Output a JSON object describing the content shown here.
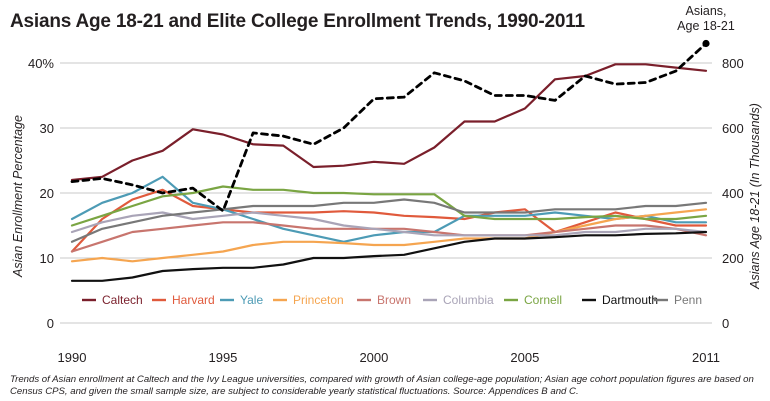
{
  "chart_data": {
    "type": "line",
    "title": "Asians Age 18-21 and Elite College Enrollment Trends, 1990-2011",
    "ylabel_left": "Asian Enrollment Percentage",
    "ylabel_right": "Asians Age 18-21 (In Thousands)",
    "ylim_left": [
      0,
      40
    ],
    "ylim_right": [
      0,
      800
    ],
    "yticks_left": [
      "0",
      "10",
      "20",
      "30",
      "40%"
    ],
    "yticks_right": [
      "0",
      "200",
      "400",
      "600",
      "800"
    ],
    "xticks": [
      "1990",
      "1995",
      "2000",
      "2005",
      "2011"
    ],
    "x": [
      1990,
      1991,
      1992,
      1993,
      1994,
      1995,
      1996,
      1997,
      1998,
      1999,
      2000,
      2001,
      2002,
      2003,
      2004,
      2005,
      2006,
      2007,
      2008,
      2009,
      2010,
      2011
    ],
    "grid": true,
    "legend_position": "bottom",
    "series": [
      {
        "name": "Caltech",
        "color": "#7a1f2b",
        "values": [
          22.0,
          22.5,
          25.0,
          26.5,
          29.8,
          29.0,
          27.5,
          27.3,
          24.0,
          24.2,
          24.8,
          24.5,
          27.0,
          31.0,
          31.0,
          33.0,
          37.5,
          38.0,
          39.8,
          39.8,
          39.3,
          38.8
        ]
      },
      {
        "name": "Harvard",
        "color": "#e05a3c",
        "values": [
          11.0,
          16.0,
          19.0,
          20.5,
          18.0,
          17.5,
          17.0,
          17.0,
          17.0,
          17.2,
          17.0,
          16.5,
          16.3,
          16.0,
          17.0,
          17.5,
          14.0,
          15.5,
          17.0,
          16.0,
          15.0,
          15.0
        ]
      },
      {
        "name": "Yale",
        "color": "#4d9bb5",
        "values": [
          16.0,
          18.5,
          20.0,
          22.5,
          18.5,
          17.5,
          16.0,
          14.5,
          13.5,
          12.5,
          13.5,
          14.0,
          14.0,
          16.5,
          16.5,
          16.5,
          17.0,
          16.5,
          16.0,
          16.5,
          15.5,
          15.5
        ]
      },
      {
        "name": "Princeton",
        "color": "#f5a550",
        "values": [
          9.5,
          10.0,
          9.5,
          10.0,
          10.5,
          11.0,
          12.0,
          12.5,
          12.5,
          12.3,
          12.0,
          12.0,
          12.5,
          13.0,
          13.0,
          13.0,
          14.0,
          15.0,
          16.0,
          16.5,
          17.0,
          17.5
        ]
      },
      {
        "name": "Brown",
        "color": "#c8756e",
        "values": [
          11.0,
          12.5,
          14.0,
          14.5,
          15.0,
          15.5,
          15.5,
          15.0,
          14.5,
          14.5,
          14.5,
          14.5,
          14.0,
          13.5,
          13.5,
          13.5,
          14.0,
          14.5,
          15.0,
          15.0,
          14.5,
          13.5
        ]
      },
      {
        "name": "Columbia",
        "color": "#a9a4b7",
        "values": [
          14.0,
          15.5,
          16.5,
          17.0,
          16.0,
          16.5,
          17.0,
          16.5,
          16.0,
          15.0,
          14.5,
          14.0,
          13.5,
          13.5,
          13.5,
          13.5,
          13.5,
          14.0,
          14.0,
          14.5,
          14.5,
          14.0
        ]
      },
      {
        "name": "Cornell",
        "color": "#7aa543",
        "values": [
          15.0,
          16.5,
          18.0,
          19.5,
          20.0,
          21.0,
          20.5,
          20.5,
          20.0,
          20.0,
          19.8,
          19.8,
          19.8,
          16.5,
          16.0,
          16.0,
          16.0,
          16.3,
          16.5,
          16.0,
          16.0,
          16.5
        ]
      },
      {
        "name": "Dartmouth",
        "color": "#111111",
        "values": [
          6.5,
          6.5,
          7.0,
          8.0,
          8.3,
          8.5,
          8.5,
          9.0,
          10.0,
          10.0,
          10.3,
          10.5,
          11.5,
          12.5,
          13.0,
          13.0,
          13.2,
          13.5,
          13.5,
          13.7,
          13.8,
          14.0
        ]
      },
      {
        "name": "Penn",
        "color": "#787878",
        "values": [
          12.5,
          14.5,
          15.5,
          16.5,
          17.0,
          17.5,
          18.0,
          18.0,
          18.0,
          18.5,
          18.5,
          19.0,
          18.5,
          17.0,
          17.0,
          17.0,
          17.5,
          17.5,
          17.5,
          18.0,
          18.0,
          18.5
        ]
      },
      {
        "name": "Asians, Age 18-21",
        "axis": "right",
        "color": "#000000",
        "dashed": true,
        "values": [
          435,
          445,
          425,
          400,
          415,
          345,
          585,
          575,
          550,
          600,
          690,
          695,
          770,
          745,
          700,
          700,
          685,
          760,
          735,
          740,
          775,
          860
        ]
      }
    ],
    "annotation": "Asians,\nAge 18-21"
  },
  "caption": "Trends of Asian enrollment at Caltech and the Ivy League universities, compared with growth of Asian college-age population; Asian age cohort population figures are based on Census CPS, and given the small sample size, are subject to considerable yearly statistical fluctuations. Source: Appendices B and C."
}
